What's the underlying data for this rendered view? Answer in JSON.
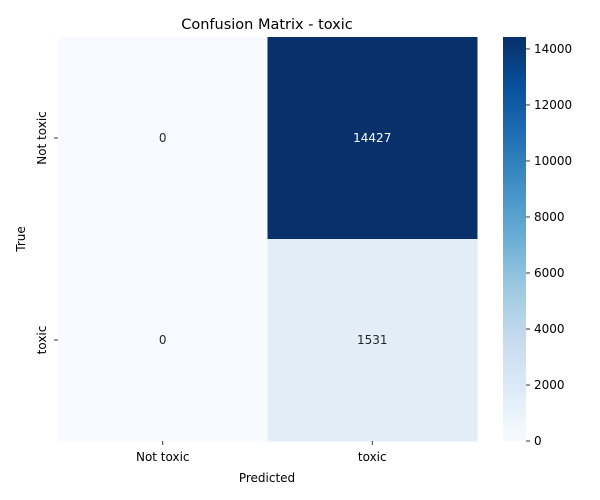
{
  "chart_data": {
    "type": "heatmap",
    "title": "Confusion Matrix - toxic",
    "xlabel": "Predicted",
    "ylabel": "True",
    "x_categories": [
      "Not toxic",
      "toxic"
    ],
    "y_categories": [
      "Not toxic",
      "toxic"
    ],
    "matrix": [
      [
        0,
        14427
      ],
      [
        0,
        1531
      ]
    ],
    "colormap": "Blues",
    "colorbar": {
      "min": 0,
      "max": 14427,
      "ticks": [
        0,
        2000,
        4000,
        6000,
        8000,
        10000,
        12000,
        14000
      ]
    },
    "colors": {
      "low": "#f7fbff",
      "high": "#08306b",
      "text_on_light": "#262626",
      "text_on_dark": "#ffffff"
    }
  }
}
